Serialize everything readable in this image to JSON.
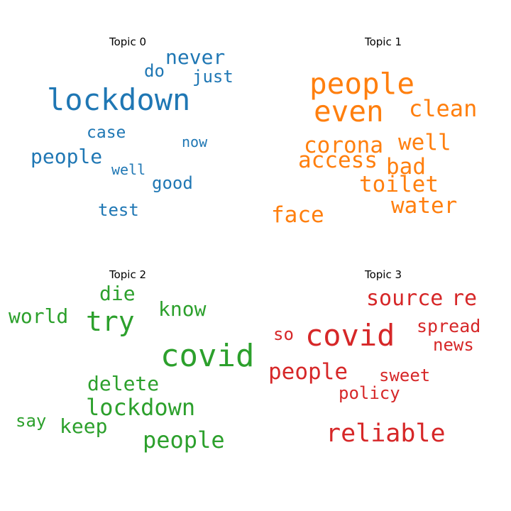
{
  "topics": [
    {
      "title": "Topic 0",
      "color": "#1f77b4",
      "words": [
        {
          "text": "lockdown"
        },
        {
          "text": "never"
        },
        {
          "text": "do"
        },
        {
          "text": "just"
        },
        {
          "text": "case"
        },
        {
          "text": "now"
        },
        {
          "text": "people"
        },
        {
          "text": "well"
        },
        {
          "text": "good"
        },
        {
          "text": "test"
        }
      ]
    },
    {
      "title": "Topic 1",
      "color": "#ff7f0e",
      "words": [
        {
          "text": "people"
        },
        {
          "text": "even"
        },
        {
          "text": "clean"
        },
        {
          "text": "corona"
        },
        {
          "text": "well"
        },
        {
          "text": "access"
        },
        {
          "text": "bad"
        },
        {
          "text": "toilet"
        },
        {
          "text": "water"
        },
        {
          "text": "face"
        }
      ]
    },
    {
      "title": "Topic 2",
      "color": "#2ca02c",
      "words": [
        {
          "text": "die"
        },
        {
          "text": "know"
        },
        {
          "text": "world"
        },
        {
          "text": "try"
        },
        {
          "text": "covid"
        },
        {
          "text": "delete"
        },
        {
          "text": "lockdown"
        },
        {
          "text": "say"
        },
        {
          "text": "keep"
        },
        {
          "text": "people"
        }
      ]
    },
    {
      "title": "Topic 3",
      "color": "#d62728",
      "words": [
        {
          "text": "source"
        },
        {
          "text": "re"
        },
        {
          "text": "spread"
        },
        {
          "text": "so"
        },
        {
          "text": "covid"
        },
        {
          "text": "news"
        },
        {
          "text": "people"
        },
        {
          "text": "sweet"
        },
        {
          "text": "policy"
        },
        {
          "text": "reliable"
        }
      ]
    }
  ]
}
